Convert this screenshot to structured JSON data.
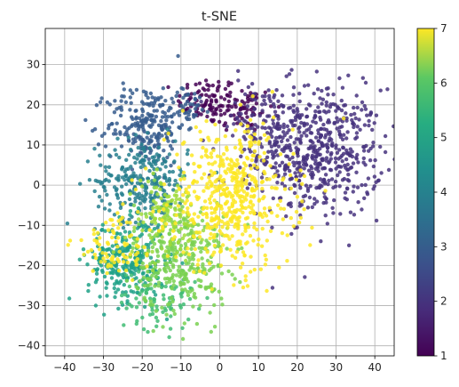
{
  "chart_data": {
    "type": "scatter",
    "title": "t-SNE",
    "xlabel": "",
    "ylabel": "",
    "xlim": [
      -45,
      45
    ],
    "ylim": [
      -42.5,
      39
    ],
    "xticks": [
      -40,
      -30,
      -20,
      -10,
      0,
      10,
      20,
      30,
      40
    ],
    "yticks": [
      -40,
      -30,
      -20,
      -10,
      0,
      10,
      20,
      30
    ],
    "grid": true,
    "colormap": "viridis",
    "colorbar": {
      "min": 1,
      "max": 7,
      "ticks": [
        1,
        2,
        3,
        4,
        5,
        6,
        7
      ]
    },
    "clusters": [
      {
        "label_value": 1,
        "color": "#440154",
        "center": [
          -3,
          21
        ],
        "spread": [
          4,
          3
        ],
        "count": 90
      },
      {
        "label_value": 1,
        "color": "#440154",
        "center": [
          6,
          19
        ],
        "spread": [
          4,
          3
        ],
        "count": 60
      },
      {
        "label_value": 2,
        "color": "#46327e",
        "center": [
          26,
          8
        ],
        "spread": [
          8,
          8
        ],
        "count": 520
      },
      {
        "label_value": 2,
        "color": "#46327e",
        "center": [
          12,
          14
        ],
        "spread": [
          7,
          6
        ],
        "count": 140
      },
      {
        "label_value": 3,
        "color": "#365c8d",
        "center": [
          -19,
          15
        ],
        "spread": [
          5,
          5
        ],
        "count": 230
      },
      {
        "label_value": 3,
        "color": "#365c8d",
        "center": [
          -8,
          20
        ],
        "spread": [
          3,
          2
        ],
        "count": 40
      },
      {
        "label_value": 4,
        "color": "#277f8e",
        "center": [
          -20,
          1
        ],
        "spread": [
          6,
          5
        ],
        "count": 260
      },
      {
        "label_value": 5,
        "color": "#1fa187",
        "center": [
          -24,
          -19
        ],
        "spread": [
          5,
          5
        ],
        "count": 280
      },
      {
        "label_value": 5,
        "color": "#3fbc73",
        "center": [
          -16,
          -28
        ],
        "spread": [
          5,
          4
        ],
        "count": 90
      },
      {
        "label_value": 6,
        "color": "#7ad151",
        "center": [
          -10,
          -18
        ],
        "spread": [
          6,
          7
        ],
        "count": 330
      },
      {
        "label_value": 6,
        "color": "#9fda3a",
        "center": [
          -14,
          -8
        ],
        "spread": [
          5,
          5
        ],
        "count": 120
      },
      {
        "label_value": 7,
        "color": "#fde725",
        "center": [
          3,
          -3
        ],
        "spread": [
          8,
          9
        ],
        "count": 520
      },
      {
        "label_value": 7,
        "color": "#fde725",
        "center": [
          -26,
          -15
        ],
        "spread": [
          6,
          4
        ],
        "count": 90
      }
    ]
  }
}
